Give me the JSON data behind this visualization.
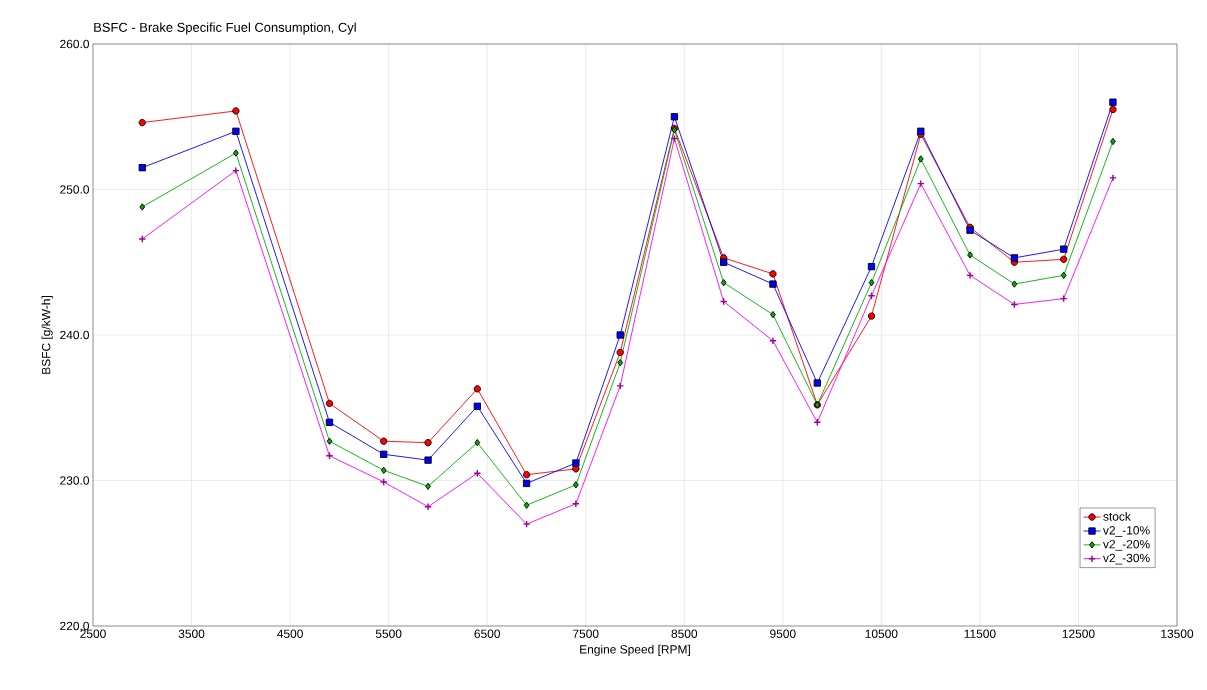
{
  "chart_data": {
    "type": "line",
    "title": "BSFC - Brake Specific Fuel Consumption, Cyl",
    "xlabel": "Engine Speed [RPM]",
    "ylabel": "BSFC [g/kW-h]",
    "x": [
      3000,
      3950,
      4900,
      5450,
      5900,
      6400,
      6900,
      7400,
      7850,
      8400,
      8900,
      9400,
      9850,
      10400,
      10900,
      11400,
      11850,
      12350,
      12850
    ],
    "series": [
      {
        "name": "stock",
        "color": "#ff0000",
        "marker": "circle",
        "values": [
          254.6,
          255.4,
          235.3,
          232.7,
          232.6,
          236.3,
          230.4,
          230.8,
          238.8,
          254.2,
          245.3,
          244.2,
          235.2,
          241.3,
          253.8,
          247.4,
          245.0,
          245.2,
          255.5
        ]
      },
      {
        "name": "v2_-10%",
        "color": "#0000ff",
        "marker": "square",
        "values": [
          251.5,
          254.0,
          234.0,
          231.8,
          231.4,
          235.1,
          229.8,
          231.2,
          240.0,
          255.0,
          245.0,
          243.5,
          236.7,
          244.7,
          254.0,
          247.2,
          245.3,
          245.9,
          256.0
        ]
      },
      {
        "name": "v2_-20%",
        "color": "#00b000",
        "marker": "diamond",
        "values": [
          248.8,
          252.5,
          232.7,
          230.7,
          229.6,
          232.6,
          228.3,
          229.7,
          238.1,
          254.1,
          243.6,
          241.4,
          235.2,
          243.6,
          252.1,
          245.5,
          243.5,
          244.1,
          253.3
        ]
      },
      {
        "name": "v2_-30%",
        "color": "#ff00ff",
        "marker": "cross",
        "values": [
          246.6,
          251.3,
          231.7,
          229.9,
          228.2,
          230.5,
          227.0,
          228.4,
          236.5,
          253.5,
          242.3,
          239.6,
          234.0,
          242.7,
          250.4,
          244.1,
          242.1,
          242.5,
          250.8
        ]
      }
    ],
    "xlim": [
      2500,
      13500
    ],
    "xticks": [
      2500,
      3500,
      4500,
      5500,
      6500,
      7500,
      8500,
      9500,
      10500,
      11500,
      12500,
      13500
    ],
    "ylim": [
      220,
      260
    ],
    "yticks": [
      {
        "value": 220,
        "label": "220.0"
      },
      {
        "value": 230,
        "label": "230.0"
      },
      {
        "value": 240,
        "label": "240.0"
      },
      {
        "value": 250,
        "label": "250.0"
      },
      {
        "value": 260,
        "label": "260.0"
      }
    ],
    "grid": true,
    "legend": "bottom right",
    "line_style": "solid"
  }
}
